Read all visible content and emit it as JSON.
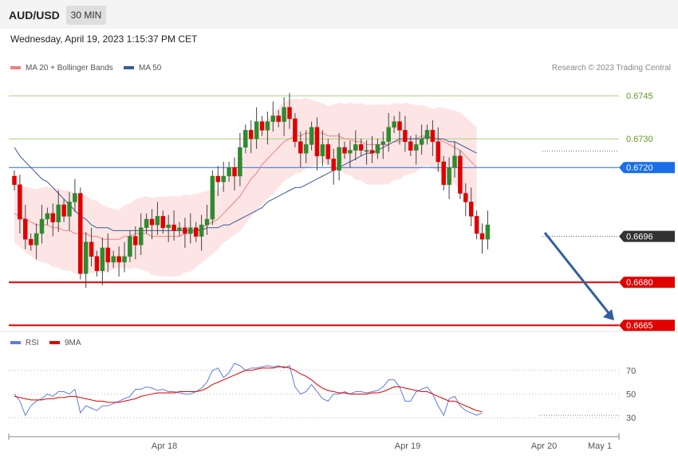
{
  "header": {
    "symbol": "AUD/USD",
    "timeframe": "30 MIN",
    "datetime": "Wednesday, April 19, 2023 1:15:37 PM CET"
  },
  "legend": {
    "ma20": {
      "label": "MA 20 + Bollinger Bands",
      "color": "#f08080"
    },
    "ma50": {
      "label": "MA 50",
      "color": "#3b5b9a"
    },
    "credit": "Research © 2023 Trading Central"
  },
  "rsi_legend": {
    "rsi": {
      "label": "RSI",
      "color": "#5b7fdc"
    },
    "ma9": {
      "label": "9MA",
      "color": "#e00000"
    }
  },
  "chart_data": [
    {
      "type": "candlestick",
      "ylim": [
        0.66645,
        0.67495
      ],
      "levels": [
        {
          "label": "0.6745",
          "value": 0.6745,
          "color": "#7aa832",
          "style": "thin"
        },
        {
          "label": "0.6730",
          "value": 0.673,
          "color": "#7aa832",
          "style": "thin"
        },
        {
          "label": "0.6720",
          "value": 0.672,
          "color": "#1a6ee8",
          "style": "badge"
        },
        {
          "label": "0.6696",
          "value": 0.6696,
          "color": "#333333",
          "style": "badge-dotted"
        },
        {
          "label": "0.6680",
          "value": 0.668,
          "color": "#e00000",
          "style": "badge-thick"
        },
        {
          "label": "0.6665",
          "value": 0.6665,
          "color": "#e00000",
          "style": "badge-thick"
        }
      ],
      "x_labels": [
        "Apr 18",
        "Apr 19",
        "Apr 20",
        "May 1"
      ],
      "candles_close": [
        0.6714,
        0.6702,
        0.6695,
        0.6693,
        0.6697,
        0.6702,
        0.6704,
        0.6701,
        0.6707,
        0.6703,
        0.6708,
        0.6711,
        0.6683,
        0.6694,
        0.6689,
        0.6684,
        0.6692,
        0.6687,
        0.6689,
        0.6687,
        0.6689,
        0.6696,
        0.6693,
        0.6699,
        0.6702,
        0.67,
        0.6703,
        0.6699,
        0.67,
        0.6698,
        0.6699,
        0.6697,
        0.6699,
        0.6696,
        0.67,
        0.6702,
        0.6717,
        0.6715,
        0.6717,
        0.672,
        0.6717,
        0.6727,
        0.6733,
        0.673,
        0.6736,
        0.6733,
        0.6736,
        0.6738,
        0.6736,
        0.6741,
        0.6737,
        0.6729,
        0.6725,
        0.6728,
        0.6734,
        0.6724,
        0.6728,
        0.6723,
        0.6719,
        0.6727,
        0.6725,
        0.6726,
        0.6728,
        0.6726,
        0.6726,
        0.6725,
        0.6728,
        0.6729,
        0.6734,
        0.6736,
        0.6733,
        0.6729,
        0.6726,
        0.6728,
        0.673,
        0.6733,
        0.6729,
        0.6722,
        0.6714,
        0.672,
        0.6724,
        0.6711,
        0.6708,
        0.6703,
        0.6697,
        0.6695,
        0.67
      ],
      "ma20": [
        0.6704,
        0.6703,
        0.6702,
        0.6701,
        0.67,
        0.67,
        0.67,
        0.6699,
        0.6699,
        0.6698,
        0.6698,
        0.6697,
        0.6697,
        0.6697,
        0.6696,
        0.6696,
        0.6695,
        0.6695,
        0.6695,
        0.6695,
        0.6696,
        0.6696,
        0.6697,
        0.6697,
        0.6697,
        0.6696,
        0.6696,
        0.6696,
        0.6696,
        0.6696,
        0.6696,
        0.6697,
        0.6697,
        0.6698,
        0.6699,
        0.67,
        0.6701,
        0.6702,
        0.6704,
        0.6706,
        0.6708,
        0.671,
        0.6713,
        0.6716,
        0.6718,
        0.6721,
        0.6723,
        0.6725,
        0.6727,
        0.6729,
        0.673,
        0.6731,
        0.6731,
        0.6732,
        0.6732,
        0.6732,
        0.6732,
        0.6731,
        0.6731,
        0.6731,
        0.673,
        0.673,
        0.6729,
        0.6729,
        0.6728,
        0.6728,
        0.6728,
        0.6728,
        0.6728,
        0.6729,
        0.6729,
        0.673,
        0.673,
        0.673,
        0.6731,
        0.6731,
        0.673,
        0.673,
        0.6729,
        0.6728,
        0.6727,
        0.6726,
        0.6724,
        0.6722,
        0.672
      ],
      "ma50": [
        0.6727,
        0.6724,
        0.6722,
        0.672,
        0.6718,
        0.6716,
        0.6715,
        0.6713,
        0.6711,
        0.6709,
        0.6707,
        0.6705,
        0.6703,
        0.6702,
        0.67,
        0.6699,
        0.6699,
        0.6699,
        0.6698,
        0.6698,
        0.6698,
        0.6698,
        0.6698,
        0.6698,
        0.6698,
        0.6698,
        0.6698,
        0.6698,
        0.6698,
        0.6698,
        0.6698,
        0.6698,
        0.6698,
        0.6698,
        0.6698,
        0.6699,
        0.6699,
        0.6699,
        0.67,
        0.67,
        0.6701,
        0.6702,
        0.6703,
        0.6704,
        0.6705,
        0.6706,
        0.6708,
        0.6709,
        0.671,
        0.6711,
        0.6712,
        0.6713,
        0.6713,
        0.6714,
        0.6715,
        0.6716,
        0.6717,
        0.6718,
        0.6719,
        0.672,
        0.6721,
        0.6722,
        0.6723,
        0.6724,
        0.6725,
        0.6725,
        0.6726,
        0.6727,
        0.6728,
        0.6729,
        0.673,
        0.673,
        0.673,
        0.673,
        0.673,
        0.6731,
        0.673,
        0.673,
        0.673,
        0.6729,
        0.6729,
        0.6728,
        0.6727,
        0.6726,
        0.6725
      ]
    },
    {
      "type": "line",
      "title": "RSI",
      "ylim": [
        24,
        82
      ],
      "levels": [
        {
          "label": "70",
          "value": 70
        },
        {
          "label": "50",
          "value": 50
        },
        {
          "label": "30",
          "value": 30
        }
      ],
      "series": [
        {
          "name": "RSI",
          "color": "#5b7fdc",
          "values": [
            50,
            44,
            32,
            40,
            44,
            46,
            50,
            48,
            52,
            52,
            50,
            54,
            34,
            40,
            38,
            36,
            40,
            40,
            42,
            44,
            46,
            48,
            54,
            54,
            56,
            55,
            53,
            54,
            52,
            52,
            51,
            50,
            50,
            52,
            55,
            60,
            70,
            72,
            64,
            68,
            76,
            74,
            70,
            72,
            72,
            73,
            74,
            73,
            74,
            72,
            74,
            56,
            50,
            52,
            58,
            52,
            46,
            44,
            50,
            50,
            52,
            50,
            52,
            52,
            51,
            52,
            53,
            56,
            62,
            62,
            56,
            44,
            44,
            52,
            54,
            56,
            50,
            40,
            32,
            46,
            48,
            40,
            36,
            34,
            32,
            34
          ]
        },
        {
          "name": "9MA",
          "color": "#e00000",
          "values": [
            48,
            47,
            46,
            45,
            45,
            45,
            46,
            46,
            47,
            47,
            48,
            48,
            47,
            46,
            45,
            44,
            44,
            43,
            43,
            43,
            44,
            45,
            46,
            48,
            49,
            50,
            51,
            51,
            51,
            51,
            52,
            52,
            52,
            52,
            53,
            55,
            58,
            60,
            62,
            64,
            66,
            68,
            70,
            70,
            71,
            72,
            72,
            72,
            73,
            73,
            72,
            70,
            67,
            65,
            62,
            58,
            55,
            53,
            52,
            51,
            51,
            50,
            50,
            50,
            50,
            51,
            51,
            52,
            54,
            56,
            56,
            55,
            54,
            53,
            52,
            52,
            50,
            48,
            46,
            44,
            44,
            42,
            40,
            38,
            36,
            35
          ]
        }
      ]
    }
  ]
}
